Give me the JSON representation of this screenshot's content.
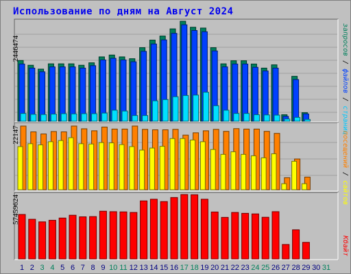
{
  "title": "Использование по дням на Август 2024",
  "legend": {
    "top": {
      "hits": "запросов",
      "files": "файлов",
      "pages": "страниц"
    },
    "middle": {
      "sites": "сайтов",
      "visits": "посещений"
    },
    "bottom": {
      "kbytes": "Кбайт"
    }
  },
  "colors": {
    "hits": "#00805c",
    "files": "#0040ff",
    "pages": "#00e0ff",
    "visits": "#ff8000",
    "sites": "#ffff00",
    "kbytes": "#ff0000",
    "weekend": "#00805c",
    "weekday": "#000080"
  },
  "chart_data": [
    {
      "type": "bar",
      "name": "hits-files-pages",
      "ymax_label": "2446474",
      "ylim": [
        0,
        2446474
      ],
      "categories": [
        "1",
        "2",
        "3",
        "4",
        "5",
        "6",
        "7",
        "8",
        "9",
        "10",
        "11",
        "12",
        "13",
        "14",
        "15",
        "16",
        "17",
        "18",
        "19",
        "20",
        "21",
        "22",
        "23",
        "24",
        "25",
        "26",
        "27",
        "28",
        "29",
        "30",
        "31"
      ],
      "weekend": [
        false,
        false,
        true,
        true,
        false,
        false,
        false,
        false,
        false,
        true,
        true,
        false,
        false,
        false,
        false,
        false,
        true,
        true,
        false,
        false,
        false,
        false,
        false,
        true,
        true,
        false,
        false,
        false,
        false,
        false,
        true
      ],
      "series": [
        {
          "key": "hits",
          "values": [
            1486000,
            1370000,
            1275000,
            1405000,
            1405000,
            1405000,
            1370000,
            1430000,
            1575000,
            1620000,
            1575000,
            1530000,
            1800000,
            1985000,
            2085000,
            2260000,
            2446474,
            2300000,
            2280000,
            1800000,
            1405000,
            1480000,
            1480000,
            1400000,
            1300000,
            1380000,
            160000,
            1100000,
            210000,
            0,
            0
          ]
        },
        {
          "key": "files",
          "values": [
            1400000,
            1300000,
            1210000,
            1330000,
            1330000,
            1330000,
            1300000,
            1360000,
            1500000,
            1540000,
            1500000,
            1455000,
            1710000,
            1890000,
            1990000,
            2150000,
            2360000,
            2220000,
            2190000,
            1720000,
            1330000,
            1400000,
            1400000,
            1320000,
            1230000,
            1300000,
            120000,
            1020000,
            180000,
            0,
            0
          ]
        },
        {
          "key": "pages",
          "values": [
            190000,
            170000,
            165000,
            175000,
            185000,
            180000,
            185000,
            185000,
            200000,
            270000,
            250000,
            140000,
            140000,
            500000,
            530000,
            600000,
            630000,
            640000,
            710000,
            380000,
            270000,
            190000,
            190000,
            160000,
            155000,
            150000,
            55000,
            95000,
            45000,
            0,
            0
          ]
        }
      ]
    },
    {
      "type": "bar",
      "name": "visits-sites",
      "ymax_label": "22147",
      "ylim": [
        0,
        22147
      ],
      "series": [
        {
          "key": "visits",
          "values": [
            22147,
            20130,
            19400,
            20240,
            20130,
            22147,
            21200,
            20500,
            21800,
            21100,
            21100,
            22147,
            21000,
            20850,
            20850,
            21000,
            19000,
            19800,
            20500,
            21000,
            20300,
            21250,
            21100,
            21100,
            20300,
            19600,
            4200,
            10700,
            4400,
            0,
            0
          ]
        },
        {
          "key": "sites",
          "values": [
            15000,
            16000,
            15600,
            16700,
            17100,
            18100,
            16000,
            15900,
            16400,
            16300,
            15700,
            15000,
            13800,
            14500,
            15100,
            17800,
            17800,
            17300,
            16700,
            14000,
            12300,
            13200,
            12300,
            11800,
            11100,
            12500,
            2100,
            9900,
            2100,
            0,
            0
          ]
        }
      ]
    },
    {
      "type": "bar",
      "name": "kbytes",
      "ymax_label": "57459624",
      "ylim": [
        0,
        57459624
      ],
      "series": [
        {
          "key": "kbytes",
          "values": [
            39700000,
            35400000,
            33100000,
            34500000,
            36500000,
            39000000,
            37600000,
            37800000,
            42600000,
            42200000,
            42000000,
            41500000,
            51800000,
            53300000,
            51200000,
            54800000,
            57459624,
            57300000,
            53300000,
            41900000,
            37100000,
            41500000,
            40700000,
            40200000,
            37200000,
            42200000,
            12900000,
            26000000,
            14800000,
            0,
            0
          ]
        }
      ]
    }
  ]
}
